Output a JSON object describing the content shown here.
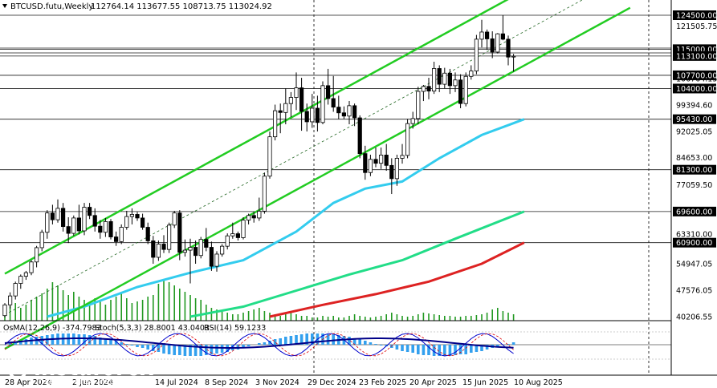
{
  "header": {
    "symbol": "BTCUSD.futu,Weekly",
    "ohlc": "112764.14 113677.55 108713.75 113024.92"
  },
  "indicators": {
    "osma": "OsMA(12,26,9) -374.7983",
    "stoch": "Stoch(5,3,3) 28.8001 43.0403",
    "rsi": "RSI(14) 59.1233"
  },
  "watermark": {
    "brand": "instaforex",
    "tagline": "Instant Forex Trading"
  },
  "colors": {
    "candle_up": "#ffffff",
    "candle_down": "#000000",
    "channel": "#22cc22",
    "ma_fast": "#33ccee",
    "ma_mid": "#22dd88",
    "ma_slow": "#dd2222",
    "volume": "#229922",
    "osma_hist": "#33a0ee",
    "stoch_main": "#0000cc",
    "stoch_signal": "#dd0000",
    "rsi": "#33aaee",
    "level_box": "#000000"
  },
  "chart_data": {
    "type": "candlestick",
    "symbol": "BTCUSD.futu",
    "timeframe": "Weekly",
    "y_ticks": [
      "124500.00",
      "121505.75",
      "115000.00",
      "113100.00",
      "107700.00",
      "106764.15",
      "104000.00",
      "99394.60",
      "95430.00",
      "92025.05",
      "84653.00",
      "81300.00",
      "77059.50",
      "69600.00",
      "63310.00",
      "60900.00",
      "54947.05",
      "47576.05",
      "40206.55"
    ],
    "level_labels": [
      "124500.00",
      "115000.00",
      "113100.00",
      "107700.00",
      "104000.00",
      "95430.00",
      "81300.00",
      "69600.00",
      "60900.00"
    ],
    "x_tick_labels": [
      "28 Apr 2024",
      "2 Jun 2024",
      "14 Jul 2024",
      "8 Sep 2024",
      "3 Nov 2024",
      "29 Dec 2024",
      "23 Feb 2025",
      "20 Apr 2025",
      "15 Jun 2025",
      "10 Aug 2025"
    ],
    "y_range": [
      40206.55,
      124500.0
    ],
    "candles": [
      {
        "o": 40500,
        "h": 44000,
        "l": 40000,
        "c": 43500
      },
      {
        "o": 43500,
        "h": 47000,
        "l": 42500,
        "c": 46000
      },
      {
        "o": 46000,
        "h": 50000,
        "l": 45000,
        "c": 49500
      },
      {
        "o": 49500,
        "h": 52000,
        "l": 48000,
        "c": 51500
      },
      {
        "o": 51500,
        "h": 53000,
        "l": 50500,
        "c": 52500
      },
      {
        "o": 52500,
        "h": 56000,
        "l": 51800,
        "c": 55500
      },
      {
        "o": 55500,
        "h": 60000,
        "l": 54000,
        "c": 59500
      },
      {
        "o": 59500,
        "h": 64500,
        "l": 58500,
        "c": 63800
      },
      {
        "o": 63800,
        "h": 70000,
        "l": 62000,
        "c": 69200
      },
      {
        "o": 69200,
        "h": 71500,
        "l": 66000,
        "c": 67300
      },
      {
        "o": 67300,
        "h": 73000,
        "l": 66500,
        "c": 70500
      },
      {
        "o": 70500,
        "h": 72000,
        "l": 64000,
        "c": 65400
      },
      {
        "o": 65400,
        "h": 68000,
        "l": 60800,
        "c": 63500
      },
      {
        "o": 63500,
        "h": 68500,
        "l": 62800,
        "c": 67800
      },
      {
        "o": 67800,
        "h": 71500,
        "l": 63200,
        "c": 64200
      },
      {
        "o": 64200,
        "h": 72000,
        "l": 63000,
        "c": 70800
      },
      {
        "o": 70800,
        "h": 72000,
        "l": 67500,
        "c": 68500
      },
      {
        "o": 68500,
        "h": 70500,
        "l": 64000,
        "c": 65500
      },
      {
        "o": 65500,
        "h": 67200,
        "l": 62000,
        "c": 63800
      },
      {
        "o": 63800,
        "h": 67800,
        "l": 62500,
        "c": 66800
      },
      {
        "o": 66800,
        "h": 67500,
        "l": 61800,
        "c": 62500
      },
      {
        "o": 62500,
        "h": 64000,
        "l": 60000,
        "c": 61200
      },
      {
        "o": 61200,
        "h": 66000,
        "l": 60500,
        "c": 65200
      },
      {
        "o": 65200,
        "h": 69800,
        "l": 64500,
        "c": 68200
      },
      {
        "o": 68200,
        "h": 70500,
        "l": 66000,
        "c": 68800
      },
      {
        "o": 68800,
        "h": 69500,
        "l": 67000,
        "c": 67800
      },
      {
        "o": 67800,
        "h": 69000,
        "l": 64500,
        "c": 65200
      },
      {
        "o": 65200,
        "h": 66500,
        "l": 60500,
        "c": 61400
      },
      {
        "o": 61400,
        "h": 62800,
        "l": 55000,
        "c": 56800
      },
      {
        "o": 56800,
        "h": 61500,
        "l": 55800,
        "c": 60500
      },
      {
        "o": 60500,
        "h": 63000,
        "l": 58000,
        "c": 59000
      },
      {
        "o": 59000,
        "h": 66500,
        "l": 58000,
        "c": 65800
      },
      {
        "o": 65800,
        "h": 69800,
        "l": 65000,
        "c": 69200
      },
      {
        "o": 69200,
        "h": 70000,
        "l": 56000,
        "c": 58200
      },
      {
        "o": 58200,
        "h": 61800,
        "l": 57000,
        "c": 58800
      },
      {
        "o": 58800,
        "h": 62000,
        "l": 49500,
        "c": 59600
      },
      {
        "o": 59600,
        "h": 61500,
        "l": 55000,
        "c": 57300
      },
      {
        "o": 57300,
        "h": 62500,
        "l": 56500,
        "c": 61800
      },
      {
        "o": 61800,
        "h": 65000,
        "l": 58500,
        "c": 59600
      },
      {
        "o": 59600,
        "h": 61200,
        "l": 53000,
        "c": 54300
      },
      {
        "o": 54300,
        "h": 58500,
        "l": 52800,
        "c": 57700
      },
      {
        "o": 57700,
        "h": 60500,
        "l": 57000,
        "c": 59900
      },
      {
        "o": 59900,
        "h": 63500,
        "l": 59000,
        "c": 62800
      },
      {
        "o": 62800,
        "h": 66500,
        "l": 62000,
        "c": 63400
      },
      {
        "o": 63400,
        "h": 64000,
        "l": 61500,
        "c": 62300
      },
      {
        "o": 62300,
        "h": 68000,
        "l": 61800,
        "c": 67200
      },
      {
        "o": 67200,
        "h": 69000,
        "l": 66000,
        "c": 68500
      },
      {
        "o": 68500,
        "h": 69500,
        "l": 66500,
        "c": 67800
      },
      {
        "o": 67800,
        "h": 73500,
        "l": 67000,
        "c": 69700
      },
      {
        "o": 69700,
        "h": 80500,
        "l": 69000,
        "c": 79500
      },
      {
        "o": 79500,
        "h": 92000,
        "l": 78800,
        "c": 90500
      },
      {
        "o": 90500,
        "h": 99500,
        "l": 89500,
        "c": 97800
      },
      {
        "o": 97800,
        "h": 99800,
        "l": 91500,
        "c": 97300
      },
      {
        "o": 97300,
        "h": 104000,
        "l": 94000,
        "c": 99800
      },
      {
        "o": 99800,
        "h": 103000,
        "l": 96000,
        "c": 101500
      },
      {
        "o": 101500,
        "h": 108500,
        "l": 98000,
        "c": 104200
      },
      {
        "o": 104200,
        "h": 107000,
        "l": 92200,
        "c": 97600
      },
      {
        "o": 97600,
        "h": 99800,
        "l": 92000,
        "c": 94700
      },
      {
        "o": 94700,
        "h": 102500,
        "l": 93000,
        "c": 98500
      },
      {
        "o": 98500,
        "h": 102000,
        "l": 92000,
        "c": 94500
      },
      {
        "o": 94500,
        "h": 106000,
        "l": 94000,
        "c": 104800
      },
      {
        "o": 104800,
        "h": 109500,
        "l": 99500,
        "c": 101200
      },
      {
        "o": 101200,
        "h": 107500,
        "l": 97500,
        "c": 98800
      },
      {
        "o": 98800,
        "h": 102000,
        "l": 95500,
        "c": 97200
      },
      {
        "o": 97200,
        "h": 99000,
        "l": 95500,
        "c": 96300
      },
      {
        "o": 96300,
        "h": 100500,
        "l": 94000,
        "c": 99200
      },
      {
        "o": 99200,
        "h": 99800,
        "l": 93500,
        "c": 95800
      },
      {
        "o": 95800,
        "h": 96500,
        "l": 84500,
        "c": 85800
      },
      {
        "o": 85800,
        "h": 88000,
        "l": 78500,
        "c": 80500
      },
      {
        "o": 80500,
        "h": 85500,
        "l": 79500,
        "c": 84200
      },
      {
        "o": 84200,
        "h": 87500,
        "l": 82000,
        "c": 83100
      },
      {
        "o": 83100,
        "h": 87500,
        "l": 81500,
        "c": 85400
      },
      {
        "o": 85400,
        "h": 88500,
        "l": 81000,
        "c": 82500
      },
      {
        "o": 82500,
        "h": 84500,
        "l": 74500,
        "c": 78800
      },
      {
        "o": 78800,
        "h": 85500,
        "l": 76800,
        "c": 84500
      },
      {
        "o": 84500,
        "h": 88500,
        "l": 83000,
        "c": 85300
      },
      {
        "o": 85300,
        "h": 95500,
        "l": 84500,
        "c": 94200
      },
      {
        "o": 94200,
        "h": 97500,
        "l": 92800,
        "c": 95600
      },
      {
        "o": 95600,
        "h": 104500,
        "l": 94000,
        "c": 103200
      },
      {
        "o": 103200,
        "h": 105000,
        "l": 100500,
        "c": 104600
      },
      {
        "o": 104600,
        "h": 107000,
        "l": 101000,
        "c": 103300
      },
      {
        "o": 103300,
        "h": 111500,
        "l": 102500,
        "c": 109600
      },
      {
        "o": 109600,
        "h": 110500,
        "l": 103000,
        "c": 105200
      },
      {
        "o": 105200,
        "h": 109800,
        "l": 104000,
        "c": 108300
      },
      {
        "o": 108300,
        "h": 109500,
        "l": 102500,
        "c": 104800
      },
      {
        "o": 104800,
        "h": 108500,
        "l": 103000,
        "c": 106400
      },
      {
        "o": 106400,
        "h": 108000,
        "l": 98500,
        "c": 99800
      },
      {
        "o": 99800,
        "h": 108500,
        "l": 99000,
        "c": 107400
      },
      {
        "o": 107400,
        "h": 110500,
        "l": 106500,
        "c": 108900
      },
      {
        "o": 108900,
        "h": 119000,
        "l": 108000,
        "c": 117800
      },
      {
        "o": 117800,
        "h": 123200,
        "l": 115500,
        "c": 119800
      },
      {
        "o": 119800,
        "h": 120500,
        "l": 114800,
        "c": 117900
      },
      {
        "o": 117900,
        "h": 120000,
        "l": 112500,
        "c": 114200
      },
      {
        "o": 114200,
        "h": 119500,
        "l": 113800,
        "c": 119300
      },
      {
        "o": 119300,
        "h": 124500,
        "l": 117500,
        "c": 117800
      },
      {
        "o": 117800,
        "h": 118800,
        "l": 110500,
        "c": 112800
      },
      {
        "o": 112800,
        "h": 113677,
        "l": 108713,
        "c": 113024
      }
    ]
  }
}
